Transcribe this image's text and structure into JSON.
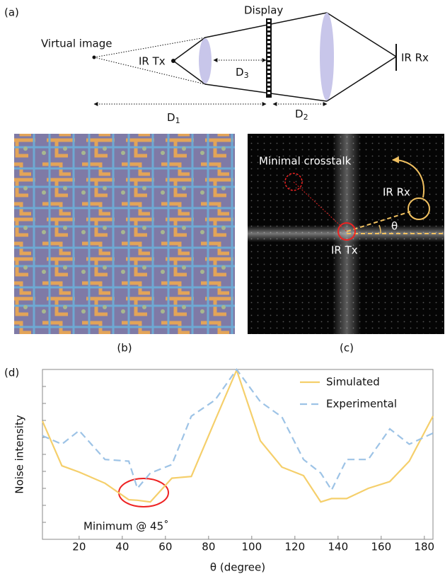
{
  "panel_a": {
    "label": "(a)",
    "virtual_image": "Virtual image",
    "ir_tx": "IR Tx",
    "display": "Display",
    "ir_rx": "IR Rx",
    "d1": {
      "base": "D",
      "sub": "1"
    },
    "d2": {
      "base": "D",
      "sub": "2"
    },
    "d3": {
      "base": "D",
      "sub": "3"
    }
  },
  "panel_b": {
    "label": "(b)"
  },
  "panel_c": {
    "label": "(c)",
    "crosstalk": "Minimal crosstalk",
    "ir_rx": "IR Rx",
    "theta": "θ",
    "ir_tx": "IR Tx"
  },
  "chart_data": {
    "type": "line",
    "label": "(d)",
    "xlabel": "θ (degree)",
    "ylabel": "Noise intensity",
    "annotation": "Minimum @ 45˚",
    "x": [
      3,
      12,
      20,
      32,
      43,
      47,
      53,
      63,
      72,
      83,
      93,
      104,
      114,
      124,
      132,
      137,
      144,
      154,
      164,
      173,
      184
    ],
    "series": [
      {
        "name": "Simulated",
        "color": "#f5cf6b",
        "dash": false,
        "values": [
          6.96,
          4.33,
          3.96,
          3.3,
          2.33,
          2.3,
          2.2,
          3.6,
          3.7,
          7.0,
          9.96,
          5.8,
          4.25,
          3.75,
          2.2,
          2.4,
          2.4,
          3.0,
          3.4,
          4.6,
          7.25
        ]
      },
      {
        "name": "Experimental",
        "color": "#9dc3e6",
        "dash": true,
        "values": [
          6.1,
          5.6,
          6.4,
          4.7,
          4.6,
          3.0,
          3.9,
          4.4,
          7.25,
          8.2,
          10,
          8.1,
          7.2,
          4.7,
          3.9,
          2.9,
          4.7,
          4.7,
          6.5,
          5.6,
          6.25
        ]
      }
    ],
    "xlim": [
      3,
      184
    ],
    "xticks": [
      20,
      40,
      60,
      80,
      100,
      120,
      140,
      160,
      180
    ],
    "ylim": [
      0,
      10
    ],
    "yticks": [
      1,
      2,
      3,
      4,
      5,
      6,
      7,
      8,
      9
    ]
  }
}
